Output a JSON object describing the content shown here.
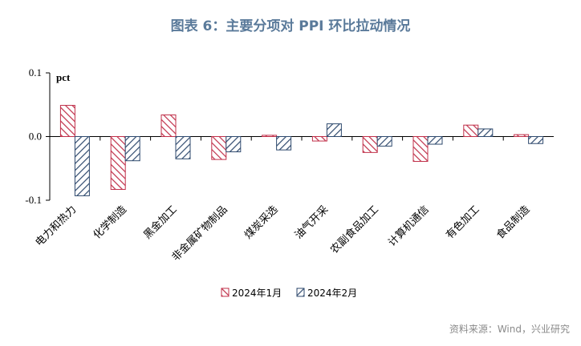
{
  "title": "图表 6：主要分项对 PPI 环比拉动情况",
  "source": "资料来源：Wind，兴业研究",
  "colors": {
    "series1": "#c0304a",
    "series2": "#2f4a6e"
  },
  "chart_data": {
    "type": "bar",
    "unit": "pct",
    "categories": [
      "电力和热力",
      "化学制造",
      "黑金加工",
      "非金属矿物制品",
      "煤炭采选",
      "油气开采",
      "农副食品加工",
      "计算机通信",
      "有色加工",
      "食品制造"
    ],
    "series": [
      {
        "name": "2024年1月",
        "values": [
          0.049,
          -0.083,
          0.034,
          -0.036,
          0.002,
          -0.007,
          -0.025,
          -0.039,
          0.018,
          0.003
        ]
      },
      {
        "name": "2024年2月",
        "values": [
          -0.093,
          -0.038,
          -0.035,
          -0.024,
          -0.021,
          0.02,
          -0.015,
          -0.012,
          0.012,
          -0.011
        ]
      }
    ],
    "ylim": [
      -0.1,
      0.1
    ],
    "yticks": [
      "0.1",
      "0.0",
      "-0.1"
    ],
    "legend_position": "bottom",
    "grid": false
  }
}
